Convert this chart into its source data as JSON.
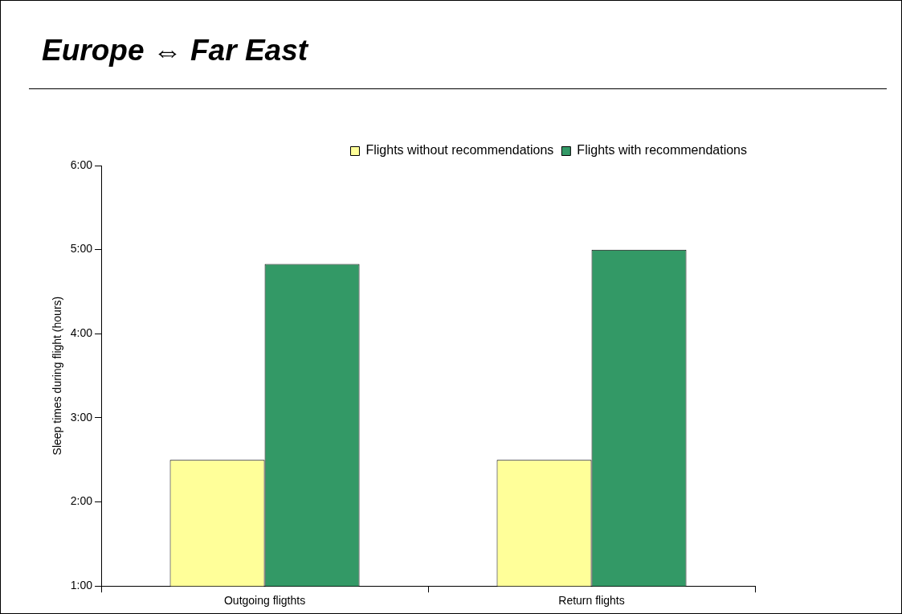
{
  "chart_data": {
    "type": "bar",
    "title": "Europe ⇔ Far East",
    "ylabel": "Sleep times during flight (hours)",
    "categories": [
      "Outgoing fligthts",
      "Return flights"
    ],
    "series": [
      {
        "name": "Flights without recommendations",
        "color": "#ffff99",
        "values": [
          2.5,
          2.5
        ]
      },
      {
        "name": "Flights with recommendations",
        "color": "#339966",
        "values": [
          4.83,
          5.0
        ]
      }
    ],
    "ylim": [
      1,
      6
    ],
    "yticks": [
      {
        "value": 1,
        "label": "1:00"
      },
      {
        "value": 2,
        "label": "2:00"
      },
      {
        "value": 3,
        "label": "3:00"
      },
      {
        "value": 4,
        "label": "4:00"
      },
      {
        "value": 5,
        "label": "5:00"
      },
      {
        "value": 6,
        "label": "6:00"
      }
    ],
    "grid": false,
    "legend": "top right"
  }
}
